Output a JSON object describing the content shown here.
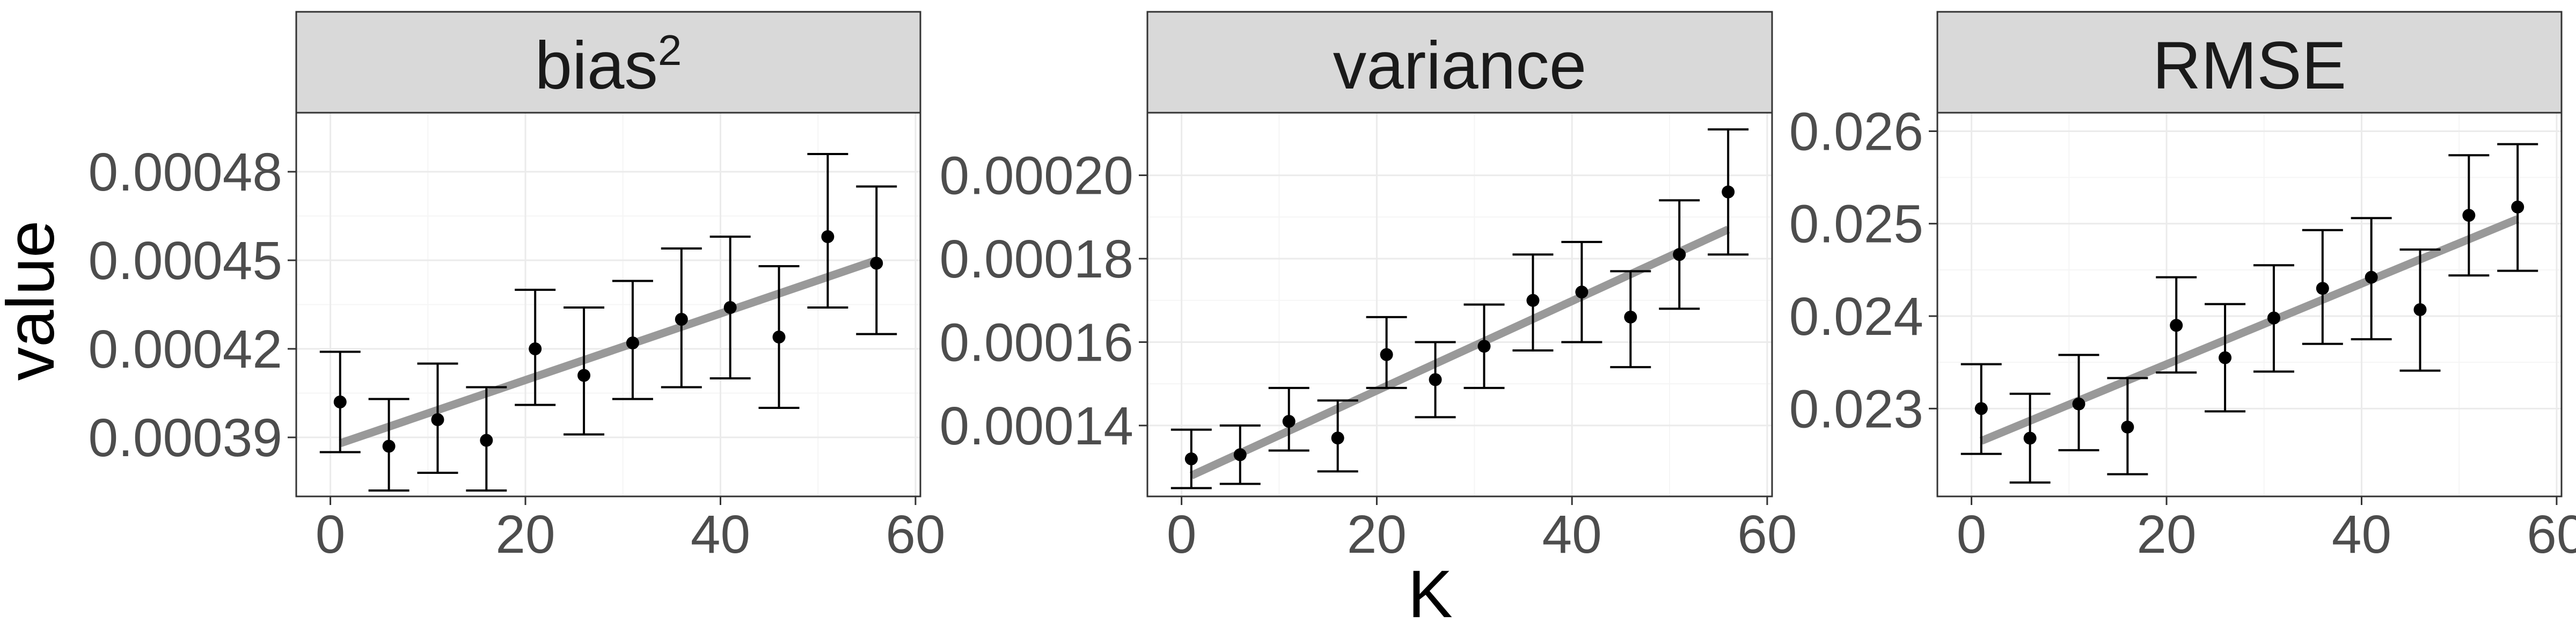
{
  "colors": {
    "strip_fill": "#d9d9d9",
    "panel_border": "#333333",
    "grid_major": "#ebebeb",
    "grid_minor": "#f5f5f5",
    "point": "#000000",
    "errorbar": "#000000",
    "trend": "#999999",
    "tick_text": "#4d4d4d"
  },
  "chart_data": {
    "type": "scatter",
    "layout": "facet_wrap",
    "xlabel": "K",
    "ylabel": "value",
    "grid": true,
    "legend": "none",
    "x": [
      1,
      6,
      11,
      16,
      21,
      26,
      31,
      36,
      41,
      46,
      51,
      56
    ],
    "xlim": [
      -3.5,
      60.5
    ],
    "xticks": [
      0,
      20,
      40,
      60
    ],
    "xtick_labels": [
      "0",
      "20",
      "40",
      "60"
    ],
    "panels": [
      {
        "title": "bias",
        "title_superscript": "2",
        "ylim": [
          0.00037,
          0.0005
        ],
        "yticks": [
          0.00039,
          0.00042,
          0.00045,
          0.00048
        ],
        "ytick_labels": [
          "0.00039",
          "0.00042",
          "0.00045",
          "0.00048"
        ],
        "y": [
          0.000402,
          0.000387,
          0.000396,
          0.000389,
          0.00042,
          0.000411,
          0.000422,
          0.00043,
          0.000434,
          0.000424,
          0.000458,
          0.000449
        ],
        "ymin": [
          0.000385,
          0.000372,
          0.000378,
          0.000372,
          0.000401,
          0.000391,
          0.000403,
          0.000407,
          0.00041,
          0.0004,
          0.000434,
          0.000425
        ],
        "ymax": [
          0.000419,
          0.000403,
          0.000415,
          0.000407,
          0.00044,
          0.000434,
          0.000443,
          0.000454,
          0.000458,
          0.000448,
          0.000486,
          0.000475
        ],
        "trend": {
          "x": [
            1,
            56
          ],
          "y": [
            0.000388,
            0.00045
          ]
        }
      },
      {
        "title": "variance",
        "title_superscript": "",
        "ylim": [
          0.000123,
          0.000215
        ],
        "yticks": [
          0.00014,
          0.00016,
          0.00018,
          0.0002
        ],
        "ytick_labels": [
          "0.00014",
          "0.00016",
          "0.00018",
          "0.00020"
        ],
        "y": [
          0.000132,
          0.000133,
          0.000141,
          0.000137,
          0.000157,
          0.000151,
          0.000159,
          0.00017,
          0.000172,
          0.000166,
          0.000181,
          0.000196
        ],
        "ymin": [
          0.000125,
          0.000126,
          0.000134,
          0.000129,
          0.000149,
          0.000142,
          0.000149,
          0.000158,
          0.00016,
          0.000154,
          0.000168,
          0.000181
        ],
        "ymax": [
          0.000139,
          0.00014,
          0.000149,
          0.000146,
          0.000166,
          0.00016,
          0.000169,
          0.000181,
          0.000184,
          0.000177,
          0.000194,
          0.000211
        ],
        "trend": {
          "x": [
            1,
            56
          ],
          "y": [
            0.000128,
            0.000187
          ]
        }
      },
      {
        "title": "RMSE",
        "title_superscript": "",
        "ylim": [
          0.02205,
          0.0262
        ],
        "yticks": [
          0.023,
          0.024,
          0.025,
          0.026
        ],
        "ytick_labels": [
          "0.023",
          "0.024",
          "0.025",
          "0.026"
        ],
        "y": [
          0.023,
          0.02268,
          0.02305,
          0.0228,
          0.0239,
          0.02355,
          0.02398,
          0.0243,
          0.02442,
          0.02407,
          0.02509,
          0.02518
        ],
        "ymin": [
          0.02251,
          0.0222,
          0.02255,
          0.02229,
          0.02339,
          0.02297,
          0.0234,
          0.0237,
          0.02375,
          0.02341,
          0.02444,
          0.02449
        ],
        "ymax": [
          0.02348,
          0.02316,
          0.02358,
          0.02333,
          0.02442,
          0.02413,
          0.02455,
          0.02493,
          0.02506,
          0.02472,
          0.02574,
          0.02586
        ],
        "trend": {
          "x": [
            1,
            56
          ],
          "y": [
            0.02265,
            0.02505
          ]
        }
      }
    ]
  }
}
